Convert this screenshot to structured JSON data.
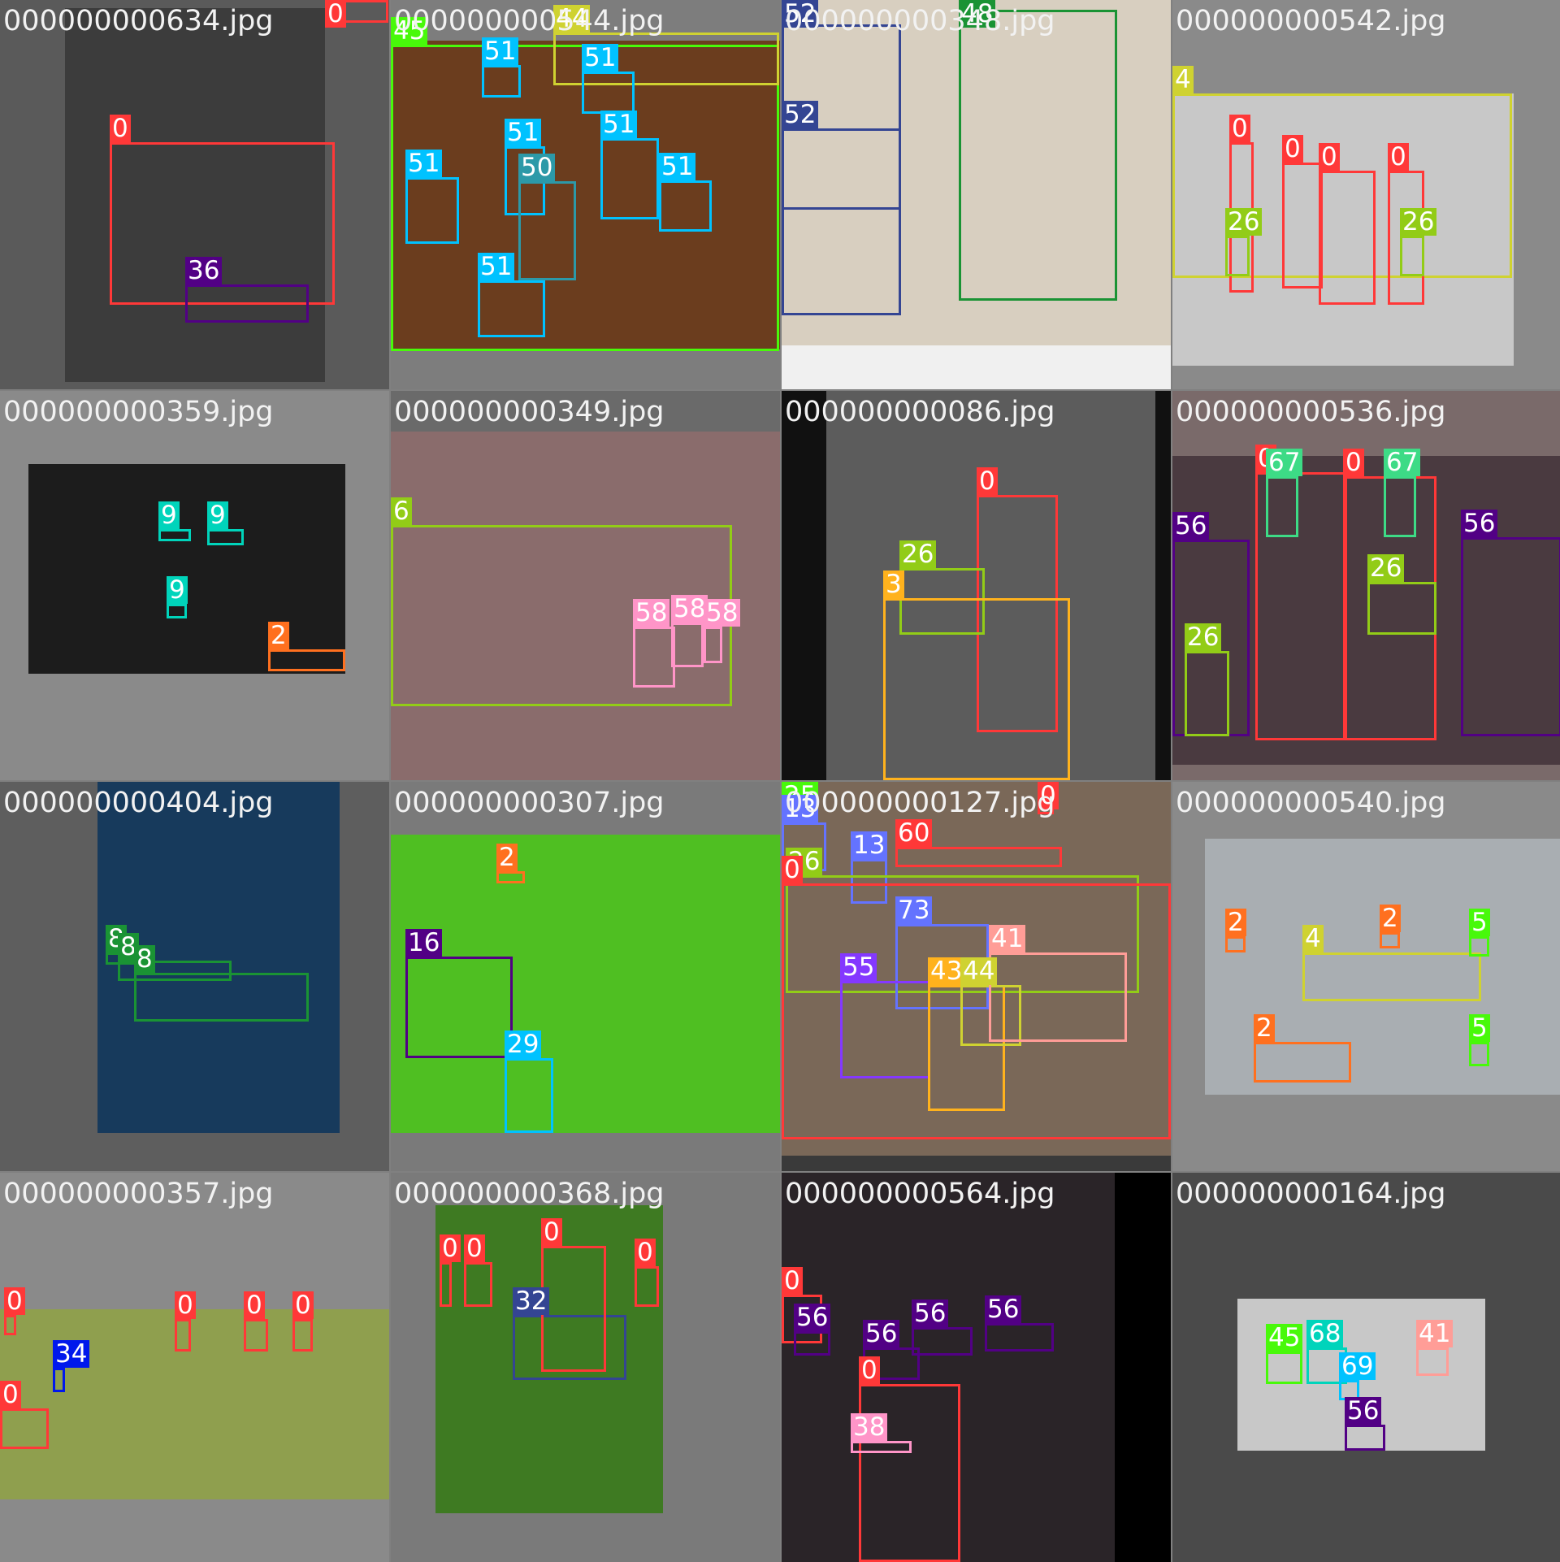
{
  "palette": {
    "0": "#ff3838",
    "2": "#ff701f",
    "3": "#ffb21d",
    "4": "#cfd231",
    "5": "#48f90a",
    "6": "#92cc17",
    "8": "#1a9334",
    "9": "#00d4bb",
    "13": "#6473ff",
    "16": "#520085",
    "25": "#48f90a",
    "26": "#92cc17",
    "29": "#00c2ff",
    "32": "#344593",
    "34": "#0018ec",
    "36": "#520085",
    "38": "#ff95c8",
    "41": "#ff9d97",
    "43": "#ffb21d",
    "44": "#cfd231",
    "45": "#48f90a",
    "48": "#1a9334",
    "50": "#2c99a8",
    "51": "#00c2ff",
    "52": "#344593",
    "55": "#8438ff",
    "56": "#520085",
    "58": "#ff95c8",
    "60": "#ff3838",
    "67": "#3ddb86",
    "68": "#00d4bb",
    "69": "#00c2ff",
    "73": "#6473ff",
    "39": "#ff37c7"
  },
  "tiles": [
    {
      "file": "000000000634.jpg",
      "scene": {
        "bg": "#5a5a5a",
        "pos": [
          80,
          10,
          400,
          470
        ],
        "fill": "#3c3c3c"
      },
      "boxes": [
        [
          0,
          135,
          175,
          412,
          375
        ],
        [
          36,
          228,
          350,
          380,
          397
        ],
        [
          0,
          400,
          0,
          478,
          28
        ]
      ]
    },
    {
      "file": "000000000544.jpg",
      "scene": {
        "bg": "#7d7d7d",
        "pos": [
          0,
          50,
          479,
          430
        ],
        "fill": "#6b3d1e"
      },
      "boxes": [
        [
          45,
          0,
          55,
          478,
          432
        ],
        [
          44,
          200,
          40,
          478,
          105
        ],
        [
          51,
          112,
          80,
          160,
          120
        ],
        [
          51,
          235,
          88,
          300,
          140
        ],
        [
          51,
          18,
          218,
          84,
          300
        ],
        [
          51,
          140,
          180,
          190,
          265
        ],
        [
          51,
          258,
          170,
          330,
          270
        ],
        [
          51,
          330,
          222,
          395,
          285
        ],
        [
          50,
          157,
          223,
          228,
          345
        ],
        [
          51,
          107,
          345,
          190,
          415
        ]
      ]
    },
    {
      "file": "000000000348.jpg",
      "scene": {
        "bg": "#f0f0f0",
        "pos": [
          0,
          0,
          479,
          425
        ],
        "fill": "#d8cfc0"
      },
      "boxes": [
        [
          52,
          0,
          30,
          147,
          388
        ],
        [
          52,
          0,
          158,
          147,
          258
        ],
        [
          48,
          218,
          12,
          413,
          370
        ]
      ]
    },
    {
      "file": "000000000542.jpg",
      "scene": {
        "bg": "#8a8a8a",
        "pos": [
          0,
          115,
          420,
          450
        ],
        "fill": "#c8c8c8"
      },
      "boxes": [
        [
          4,
          0,
          115,
          418,
          342
        ],
        [
          0,
          70,
          175,
          100,
          360
        ],
        [
          0,
          135,
          200,
          185,
          355
        ],
        [
          0,
          180,
          210,
          250,
          375
        ],
        [
          0,
          265,
          210,
          310,
          375
        ],
        [
          26,
          65,
          290,
          95,
          340
        ],
        [
          26,
          280,
          290,
          310,
          340
        ]
      ]
    },
    {
      "file": "000000000359.jpg",
      "scene": {
        "bg": "#8a8a8a",
        "pos": [
          35,
          90,
          425,
          348
        ],
        "fill": "#1c1c1c"
      },
      "boxes": [
        [
          9,
          195,
          170,
          235,
          185
        ],
        [
          9,
          255,
          170,
          300,
          190
        ],
        [
          9,
          205,
          262,
          230,
          280
        ],
        [
          2,
          330,
          318,
          425,
          345
        ]
      ]
    },
    {
      "file": "000000000349.jpg",
      "scene": {
        "bg": "#6a6a6a",
        "pos": [
          0,
          50,
          479,
          479
        ],
        "fill": "#8a6c6c"
      },
      "boxes": [
        [
          6,
          0,
          165,
          420,
          388
        ],
        [
          58,
          298,
          290,
          350,
          365
        ],
        [
          58,
          345,
          285,
          385,
          340
        ],
        [
          58,
          385,
          290,
          408,
          335
        ]
      ]
    },
    {
      "file": "000000000086.jpg",
      "scene": {
        "bg": "#111111",
        "pos": [
          55,
          0,
          460,
          479
        ],
        "fill": "#5c5c5c"
      },
      "boxes": [
        [
          0,
          240,
          128,
          340,
          420
        ],
        [
          26,
          145,
          218,
          250,
          300
        ],
        [
          3,
          125,
          255,
          355,
          479
        ]
      ]
    },
    {
      "file": "000000000536.jpg",
      "scene": {
        "bg": "#7a6a6a",
        "pos": [
          0,
          80,
          479,
          460
        ],
        "fill": "#4a3a40"
      },
      "boxes": [
        [
          56,
          0,
          183,
          95,
          425
        ],
        [
          0,
          102,
          100,
          215,
          430
        ],
        [
          67,
          115,
          105,
          155,
          180
        ],
        [
          0,
          210,
          105,
          325,
          430
        ],
        [
          67,
          260,
          105,
          300,
          180
        ],
        [
          26,
          240,
          235,
          325,
          300
        ],
        [
          26,
          15,
          320,
          70,
          425
        ],
        [
          56,
          355,
          180,
          479,
          425
        ]
      ]
    },
    {
      "file": "000000000404.jpg",
      "scene": {
        "bg": "#5e5e5e",
        "pos": [
          120,
          0,
          418,
          432
        ],
        "fill": "#173a5c"
      },
      "boxes": [
        [
          8,
          130,
          210,
          170,
          225
        ],
        [
          8,
          145,
          220,
          285,
          245
        ],
        [
          8,
          165,
          235,
          380,
          295
        ]
      ]
    },
    {
      "file": "000000000307.jpg",
      "scene": {
        "bg": "#7a7a7a",
        "pos": [
          0,
          65,
          479,
          432
        ],
        "fill": "#4fbf22"
      },
      "boxes": [
        [
          2,
          130,
          110,
          165,
          125
        ],
        [
          16,
          18,
          215,
          150,
          340
        ],
        [
          29,
          140,
          340,
          200,
          432
        ]
      ]
    },
    {
      "file": "000000000127.jpg",
      "scene": {
        "bg": "#3a3a3a",
        "pos": [
          0,
          0,
          479,
          460
        ],
        "fill": "#7a6858"
      },
      "boxes": [
        [
          25,
          0,
          8,
          45,
          50
        ],
        [
          13,
          0,
          50,
          55,
          110
        ],
        [
          13,
          85,
          95,
          130,
          150
        ],
        [
          60,
          140,
          80,
          345,
          105
        ],
        [
          26,
          5,
          115,
          440,
          260
        ],
        [
          0,
          0,
          125,
          479,
          440
        ],
        [
          73,
          140,
          175,
          255,
          280
        ],
        [
          55,
          72,
          245,
          183,
          365
        ],
        [
          43,
          180,
          250,
          275,
          405
        ],
        [
          44,
          220,
          250,
          295,
          325
        ],
        [
          41,
          255,
          210,
          425,
          320
        ],
        [
          0,
          315,
          0,
          335,
          40
        ]
      ]
    },
    {
      "file": "000000000540.jpg",
      "scene": {
        "bg": "#8a8a8a",
        "pos": [
          40,
          70,
          479,
          385
        ],
        "fill": "#a9aeb2"
      },
      "boxes": [
        [
          4,
          160,
          210,
          380,
          270
        ],
        [
          2,
          65,
          190,
          90,
          210
        ],
        [
          2,
          255,
          185,
          280,
          205
        ],
        [
          5,
          365,
          190,
          390,
          215
        ],
        [
          2,
          100,
          320,
          220,
          370
        ],
        [
          5,
          365,
          320,
          390,
          350
        ]
      ]
    },
    {
      "file": "000000000357.jpg",
      "scene": {
        "bg": "#8a8a8a",
        "pos": [
          0,
          168,
          479,
          402
        ],
        "fill": "#8f9f4e"
      },
      "boxes": [
        [
          0,
          5,
          175,
          20,
          200
        ],
        [
          0,
          215,
          180,
          235,
          220
        ],
        [
          0,
          300,
          180,
          330,
          220
        ],
        [
          0,
          360,
          180,
          385,
          220
        ],
        [
          34,
          65,
          240,
          80,
          270
        ],
        [
          0,
          0,
          290,
          60,
          340
        ]
      ]
    },
    {
      "file": "000000000368.jpg",
      "scene": {
        "bg": "#7a7a7a",
        "pos": [
          55,
          40,
          335,
          419
        ],
        "fill": "#3e7a22"
      },
      "boxes": [
        [
          32,
          150,
          175,
          290,
          255
        ],
        [
          0,
          185,
          90,
          265,
          245
        ],
        [
          0,
          60,
          110,
          75,
          165
        ],
        [
          0,
          90,
          110,
          125,
          165
        ],
        [
          0,
          300,
          115,
          330,
          165
        ]
      ]
    },
    {
      "file": "000000000564.jpg",
      "scene": {
        "bg": "#000000",
        "pos": [
          0,
          0,
          410,
          479
        ],
        "fill": "#2a2428"
      },
      "boxes": [
        [
          0,
          0,
          150,
          50,
          210
        ],
        [
          56,
          15,
          195,
          60,
          225
        ],
        [
          56,
          100,
          215,
          170,
          255
        ],
        [
          56,
          160,
          190,
          235,
          225
        ],
        [
          56,
          250,
          185,
          335,
          220
        ],
        [
          0,
          95,
          260,
          220,
          479
        ],
        [
          38,
          85,
          330,
          160,
          345
        ]
      ]
    },
    {
      "file": "000000000164.jpg",
      "scene": {
        "bg": "#4a4a4a",
        "pos": [
          80,
          155,
          385,
          342
        ],
        "fill": "#c8c8c8"
      },
      "boxes": [
        [
          45,
          115,
          220,
          160,
          260
        ],
        [
          68,
          165,
          215,
          215,
          260
        ],
        [
          69,
          205,
          255,
          230,
          280
        ],
        [
          41,
          300,
          215,
          340,
          250
        ],
        [
          56,
          212,
          310,
          262,
          342
        ]
      ]
    }
  ]
}
